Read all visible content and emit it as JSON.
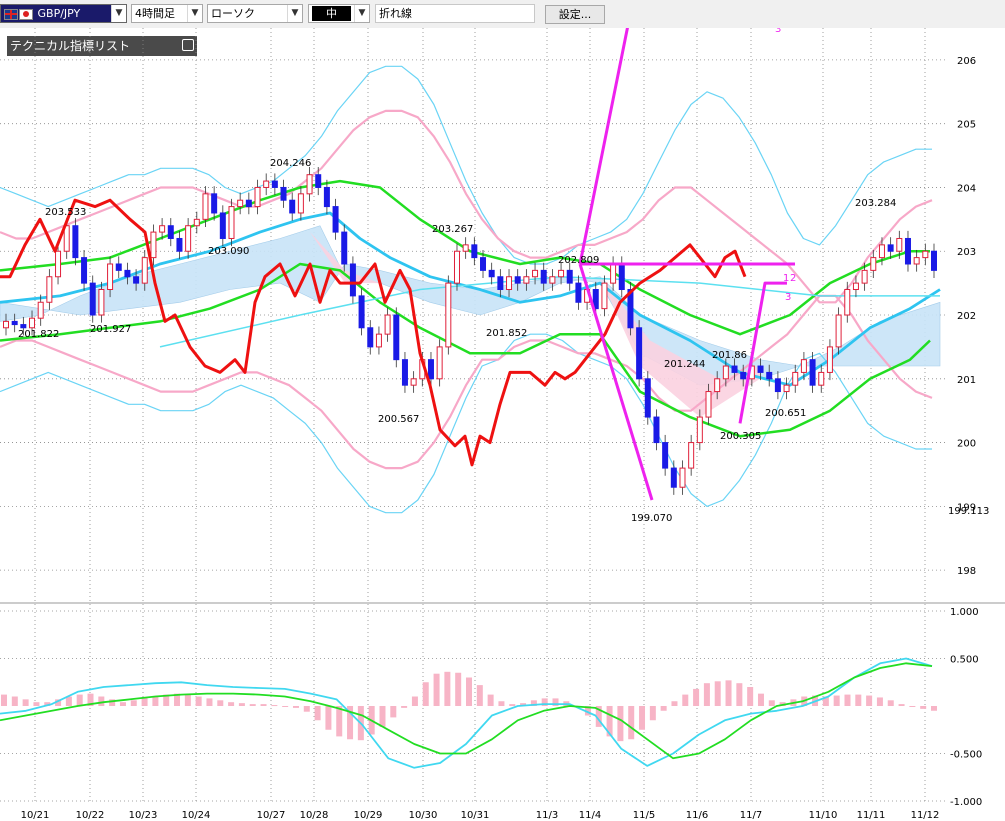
{
  "toolbar": {
    "pair": "GBP/JPY",
    "timeframe": "4時間足",
    "chart_type": "ローソク",
    "line_thickness": "中",
    "line_type": "折れ線",
    "settings_label": "設定..."
  },
  "indicator_panel": {
    "title": "テクニカル指標リスト"
  },
  "colors": {
    "bull_candle": "#e0203a",
    "bear_candle": "#1a1ae6",
    "bb_outer": "#6ad4f5",
    "bb_inner": "#f7a8c8",
    "ma_short": "#2ec4f0",
    "ma_long": "#22dd22",
    "chikou": "#ee1111",
    "cloud_pos": "#c8e4f8",
    "cloud_neg": "#fbd2e0",
    "elliott": "#ee22ee",
    "macd": "#40d8f0",
    "signal": "#22dd22",
    "histogram": "#f7b4c6"
  },
  "chart_data": [
    {
      "type": "candlestick",
      "x_labels": [
        "10/21",
        "10/22",
        "10/23",
        "10/24",
        "10/27",
        "10/28",
        "10/29",
        "10/30",
        "10/31",
        "11/3",
        "11/4",
        "11/5",
        "11/6",
        "11/7",
        "11/10",
        "11/11",
        "11/12"
      ],
      "y_ticks": [
        198,
        199,
        200,
        201,
        202,
        203,
        204,
        205,
        206
      ],
      "ylim": [
        197.72,
        206.5
      ],
      "grid": true,
      "annotations": [
        {
          "label": "201.822",
          "value": 201.822
        },
        {
          "label": "203.533",
          "value": 203.533
        },
        {
          "label": "201.927",
          "value": 201.927
        },
        {
          "label": "203.090",
          "value": 203.09
        },
        {
          "label": "204.246",
          "value": 204.246
        },
        {
          "label": "200.567",
          "value": 200.567
        },
        {
          "label": "203.267",
          "value": 203.267
        },
        {
          "label": "201.852",
          "value": 201.852
        },
        {
          "label": "202.809",
          "value": 202.809
        },
        {
          "label": "199.070",
          "value": 199.07
        },
        {
          "label": "201.244",
          "value": 201.244
        },
        {
          "label": "201.86",
          "value": 201.86
        },
        {
          "label": "200.305",
          "value": 200.305
        },
        {
          "label": "200.651",
          "value": 200.651
        },
        {
          "label": "203.284",
          "value": 203.284
        },
        {
          "label": "199.113",
          "value": 199.113
        }
      ],
      "wave_labels": [
        "1",
        "2",
        "3",
        "3"
      ],
      "close": [
        201.9,
        201.85,
        201.8,
        201.95,
        202.2,
        202.6,
        203.0,
        203.4,
        202.9,
        202.5,
        202.0,
        202.4,
        202.8,
        202.7,
        202.6,
        202.5,
        202.9,
        203.3,
        203.4,
        203.2,
        203.0,
        203.4,
        203.5,
        203.9,
        203.6,
        203.2,
        203.7,
        203.8,
        203.7,
        204.0,
        204.1,
        204.0,
        203.8,
        203.6,
        203.9,
        204.2,
        204.0,
        203.7,
        203.3,
        202.8,
        202.3,
        201.8,
        201.5,
        201.7,
        202.0,
        201.3,
        200.9,
        201.0,
        201.3,
        201.0,
        201.5,
        202.5,
        203.0,
        203.1,
        202.9,
        202.7,
        202.6,
        202.4,
        202.6,
        202.5,
        202.6,
        202.7,
        202.5,
        202.6,
        202.7,
        202.5,
        202.2,
        202.4,
        202.1,
        202.5,
        202.8,
        202.4,
        201.8,
        201.0,
        200.4,
        200.0,
        199.6,
        199.3,
        199.6,
        200.0,
        200.4,
        200.8,
        201.0,
        201.2,
        201.1,
        201.0,
        201.2,
        201.1,
        201.0,
        200.8,
        200.9,
        201.1,
        201.3,
        200.9,
        201.1,
        201.5,
        202.0,
        202.4,
        202.5,
        202.7,
        202.9,
        203.1,
        203.0,
        203.2,
        202.8,
        202.9,
        203.0,
        202.7
      ],
      "bollinger_upper": [
        204.0,
        203.9,
        203.8,
        203.7,
        203.8,
        203.9,
        204.0,
        204.1,
        204.2,
        204.2,
        204.3,
        204.3,
        204.3,
        204.2,
        204.0,
        203.9,
        204.0,
        204.1,
        204.3,
        204.5,
        204.8,
        205.2,
        205.5,
        205.8,
        205.9,
        205.9,
        205.7,
        205.3,
        204.7,
        204.1,
        203.6,
        203.2,
        202.9,
        202.8,
        202.8,
        202.9,
        203.1,
        203.2,
        203.3,
        203.5,
        203.9,
        204.4,
        204.9,
        205.3,
        205.5,
        205.4,
        205.1,
        204.7,
        204.2,
        203.6,
        203.2,
        203.1,
        203.4,
        203.8,
        204.2,
        204.4,
        204.5,
        204.6,
        204.6
      ],
      "bollinger_inner_upper": [
        203.3,
        203.2,
        203.2,
        203.3,
        203.4,
        203.5,
        203.6,
        203.7,
        203.8,
        203.9,
        204.0,
        204.0,
        204.0,
        203.9,
        203.8,
        203.7,
        203.7,
        203.8,
        203.9,
        204.1,
        204.3,
        204.6,
        204.9,
        205.1,
        205.2,
        205.2,
        205.1,
        204.8,
        204.4,
        203.9,
        203.5,
        203.2,
        203.0,
        202.9,
        202.9,
        203.0,
        203.1,
        203.1,
        203.2,
        203.3,
        203.5,
        203.8,
        204.0,
        204.0,
        203.8,
        203.6,
        203.4,
        203.2,
        203.0,
        202.8,
        202.5,
        202.2,
        202.2,
        202.5,
        202.9,
        203.2,
        203.5,
        203.7,
        203.8
      ]
    },
    {
      "type": "bar",
      "title": "",
      "y_ticks": [
        -1.0,
        -0.5,
        0.5,
        1.0
      ],
      "y_tick_labels": [
        "-1.000",
        "-0.500",
        "0.500",
        "1.000"
      ],
      "ylim": [
        -1.0,
        1.0
      ],
      "histogram": [
        0.12,
        0.1,
        0.07,
        0.04,
        0.04,
        0.07,
        0.1,
        0.12,
        0.13,
        0.1,
        0.07,
        0.04,
        0.06,
        0.09,
        0.1,
        0.12,
        0.13,
        0.12,
        0.1,
        0.08,
        0.06,
        0.04,
        0.03,
        0.02,
        0.02,
        0.01,
        0,
        -0.02,
        -0.06,
        -0.15,
        -0.25,
        -0.32,
        -0.35,
        -0.36,
        -0.3,
        -0.22,
        -0.12,
        -0.02,
        0.1,
        0.25,
        0.34,
        0.36,
        0.35,
        0.3,
        0.22,
        0.12,
        0.05,
        0.02,
        0.03,
        0.06,
        0.08,
        0.08,
        0.05,
        0,
        -0.1,
        -0.22,
        -0.32,
        -0.37,
        -0.35,
        -0.25,
        -0.15,
        -0.05,
        0.05,
        0.12,
        0.18,
        0.24,
        0.26,
        0.27,
        0.24,
        0.2,
        0.13,
        0.06,
        0.04,
        0.07,
        0.1,
        0.11,
        0.1,
        0.11,
        0.12,
        0.12,
        0.11,
        0.09,
        0.06,
        0.02,
        0,
        -0.03,
        -0.05
      ],
      "macd": [
        -0.08,
        -0.05,
        0.02,
        0.15,
        0.2,
        0.22,
        0.24,
        0.25,
        0.22,
        0.2,
        0.19,
        0.18,
        0.13,
        0.07,
        -0.2,
        -0.55,
        -0.65,
        -0.6,
        -0.4,
        -0.1,
        0.0,
        0.02,
        0.02,
        -0.1,
        -0.45,
        -0.63,
        -0.5,
        -0.3,
        -0.15,
        -0.08,
        -0.05,
        0.0,
        0.1,
        0.3,
        0.45,
        0.5,
        0.42
      ],
      "signal": [
        -0.15,
        -0.1,
        -0.05,
        0.0,
        0.04,
        0.07,
        0.1,
        0.12,
        0.13,
        0.13,
        0.12,
        0.1,
        0.05,
        -0.02,
        -0.1,
        -0.25,
        -0.4,
        -0.5,
        -0.5,
        -0.35,
        -0.15,
        -0.05,
        0.0,
        -0.02,
        -0.15,
        -0.35,
        -0.55,
        -0.5,
        -0.35,
        -0.15,
        0.0,
        0.05,
        0.15,
        0.3,
        0.4,
        0.45,
        0.42
      ]
    }
  ]
}
